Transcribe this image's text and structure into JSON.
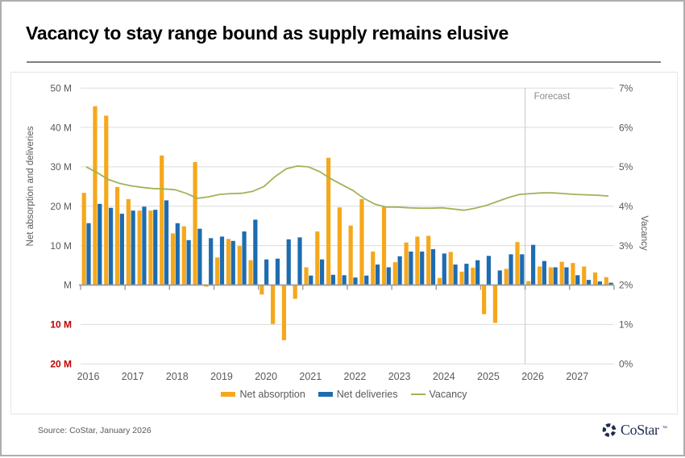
{
  "header": {
    "title": "Vacancy to stay range bound as supply remains elusive"
  },
  "footer": {
    "source": "Source: CoStar, January 2026",
    "logo_text": "CoStar",
    "logo_tm": "™"
  },
  "chart_data": {
    "type": "combo-bar-line",
    "title": "Vacancy to stay range bound as supply remains elusive",
    "x_unit": "quarter",
    "years": [
      "2016",
      "2017",
      "2018",
      "2019",
      "2020",
      "2021",
      "2022",
      "2023",
      "2024",
      "2025",
      "2026",
      "2027"
    ],
    "left_axis": {
      "title": "Net absorption and deliveries",
      "tick_labels": [
        "50 M",
        "40 M",
        "30 M",
        "20 M",
        "10 M",
        "M",
        "10 M",
        "20 M"
      ],
      "tick_values_millions": [
        50,
        40,
        30,
        20,
        10,
        0,
        -10,
        -20
      ],
      "label_color": "#595959",
      "negative_label_color": "#c00000"
    },
    "right_axis": {
      "title": "Vacancy",
      "tick_labels": [
        "7%",
        "6%",
        "5%",
        "4%",
        "3%",
        "2%",
        "1%",
        "0%"
      ],
      "tick_values_percent": [
        7,
        6,
        5,
        4,
        3,
        2,
        1,
        0
      ],
      "label_color": "#595959"
    },
    "forecast": {
      "label": "Forecast",
      "starts_at_year": "2026"
    },
    "legend": [
      {
        "label": "Net absorption",
        "color": "#F5A81C",
        "shape": "bar"
      },
      {
        "label": "Net deliveries",
        "color": "#1E6CB0",
        "shape": "bar"
      },
      {
        "label": "Vacancy",
        "color": "#9FB459",
        "shape": "line"
      }
    ],
    "grid": {
      "color": "#dcdcdc",
      "zero_line_color": "#9b9b9b",
      "forecast_line_color": "#cfcfcf",
      "frame_color": "#e6e6e6"
    },
    "series": [
      {
        "name": "Net absorption",
        "type": "bar",
        "unit": "million SF",
        "values": [
          23.4,
          45.4,
          43,
          24.9,
          21.8,
          18.9,
          18.9,
          32.9,
          13.1,
          14.9,
          31.2,
          -0.4,
          7,
          11.7,
          9.9,
          6.3,
          -2.4,
          -9.9,
          -14,
          -3.5,
          4.5,
          13.6,
          32.3,
          19.7,
          15.1,
          21.8,
          8.5,
          19.9,
          5.8,
          10.8,
          12.3,
          12.5,
          1.8,
          8.4,
          3.4,
          4.4,
          -7.4,
          -9.6,
          4.1,
          10.9,
          1,
          4.7,
          4.5,
          5.9,
          5.6,
          4.7,
          3.2,
          2
        ]
      },
      {
        "name": "Net deliveries",
        "type": "bar",
        "unit": "million SF",
        "values": [
          15.7,
          20.6,
          19.6,
          18.1,
          18.9,
          19.9,
          19.1,
          21.5,
          15.7,
          11.4,
          14.3,
          11.9,
          12.3,
          11.2,
          13.6,
          16.6,
          6.5,
          6.7,
          11.6,
          12.1,
          2.4,
          6.5,
          2.6,
          2.5,
          1.9,
          2.4,
          5.2,
          4.5,
          7.3,
          8.5,
          8.5,
          9.1,
          8,
          5.2,
          5.4,
          6.3,
          7.4,
          3.7,
          7.8,
          7.8,
          10.2,
          6.1,
          4.5,
          4.5,
          2.5,
          1.3,
          0.9,
          0.6
        ]
      },
      {
        "name": "Vacancy",
        "type": "line",
        "unit": "percent",
        "values": [
          5.0,
          4.85,
          4.68,
          4.58,
          4.52,
          4.48,
          4.45,
          4.44,
          4.42,
          4.33,
          4.2,
          4.24,
          4.3,
          4.32,
          4.33,
          4.38,
          4.5,
          4.75,
          4.95,
          5.02,
          5.0,
          4.88,
          4.7,
          4.55,
          4.4,
          4.2,
          4.05,
          3.98,
          3.98,
          3.96,
          3.95,
          3.95,
          3.96,
          3.93,
          3.9,
          3.95,
          4.02,
          4.12,
          4.22,
          4.3,
          4.32,
          4.34,
          4.34,
          4.32,
          4.3,
          4.29,
          4.28,
          4.26
        ]
      }
    ],
    "left_ylim_millions": [
      -20,
      50
    ],
    "right_ylim_percent": [
      0,
      7
    ]
  }
}
